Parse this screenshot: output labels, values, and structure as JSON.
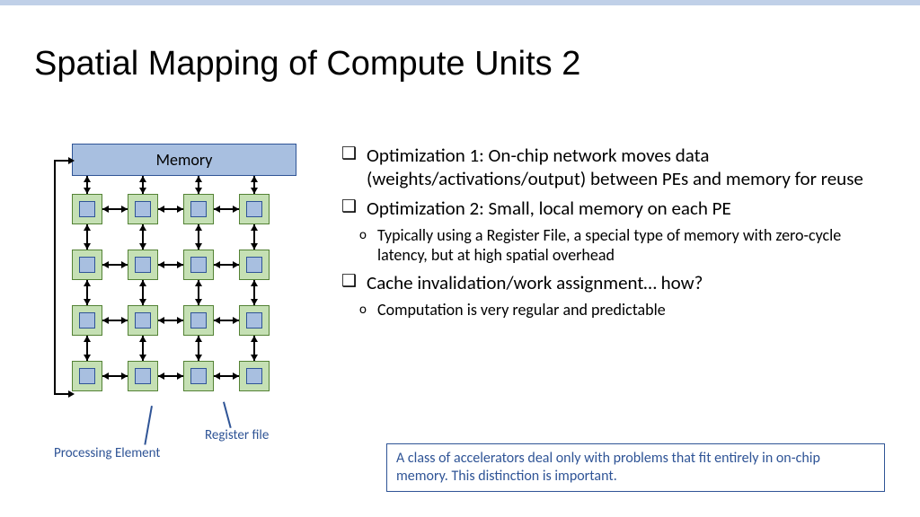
{
  "title": "Spatial Mapping of Compute Units 2",
  "memory_label": "Memory",
  "diagram": {
    "memory_color": "#a8bfe0",
    "memory_border": "#2f5496",
    "pe_color": "#c5e0b4",
    "pe_border": "#548235",
    "rf_color": "#a8bfe0",
    "rf_border": "#2f5496",
    "grid_rows": 4,
    "grid_cols": 4,
    "pe_size": 34,
    "pe_spacing": 62
  },
  "legend": {
    "register_file": "Register file",
    "processing_element": "Processing Element"
  },
  "bullets": [
    {
      "level": 0,
      "text": "Optimization 1: On-chip network moves data (weights/activations/output) between PEs and memory for reuse"
    },
    {
      "level": 0,
      "text": "Optimization 2: Small, local memory on each PE"
    },
    {
      "level": 1,
      "text": "Typically using a Register File, a special type of memory with zero-cycle latency, but at high spatial overhead"
    },
    {
      "level": 0,
      "text": "Cache invalidation/work assignment… how?"
    },
    {
      "level": 1,
      "text": "Computation is very regular and predictable"
    }
  ],
  "callout": "A class of accelerators deal only with problems that fit entirely in on-chip memory. This distinction is important.",
  "colors": {
    "stripe": "#c0d0e8",
    "accent": "#2f5496"
  }
}
